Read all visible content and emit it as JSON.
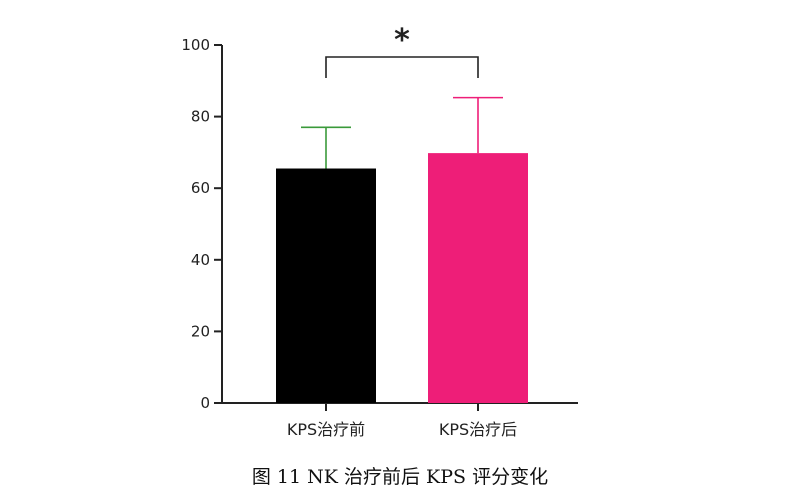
{
  "figure_caption": "图 11 NK 治疗前后 KPS 评分变化",
  "chart_data": {
    "type": "bar",
    "categories": [
      "KPS治疗前",
      "KPS治疗后"
    ],
    "values": [
      65.5,
      69.8
    ],
    "error_upper": [
      77,
      85.3
    ],
    "bar_colors": [
      "#000000",
      "#ee1e78"
    ],
    "errorbar_colors": [
      "#3a9a3a",
      "#ee1e78"
    ],
    "yticks": [
      0,
      20,
      40,
      60,
      80,
      100
    ],
    "ylim": [
      0,
      100
    ],
    "significance": {
      "between": [
        0,
        1
      ],
      "label": "*"
    },
    "title": "",
    "xlabel": "",
    "ylabel": ""
  }
}
